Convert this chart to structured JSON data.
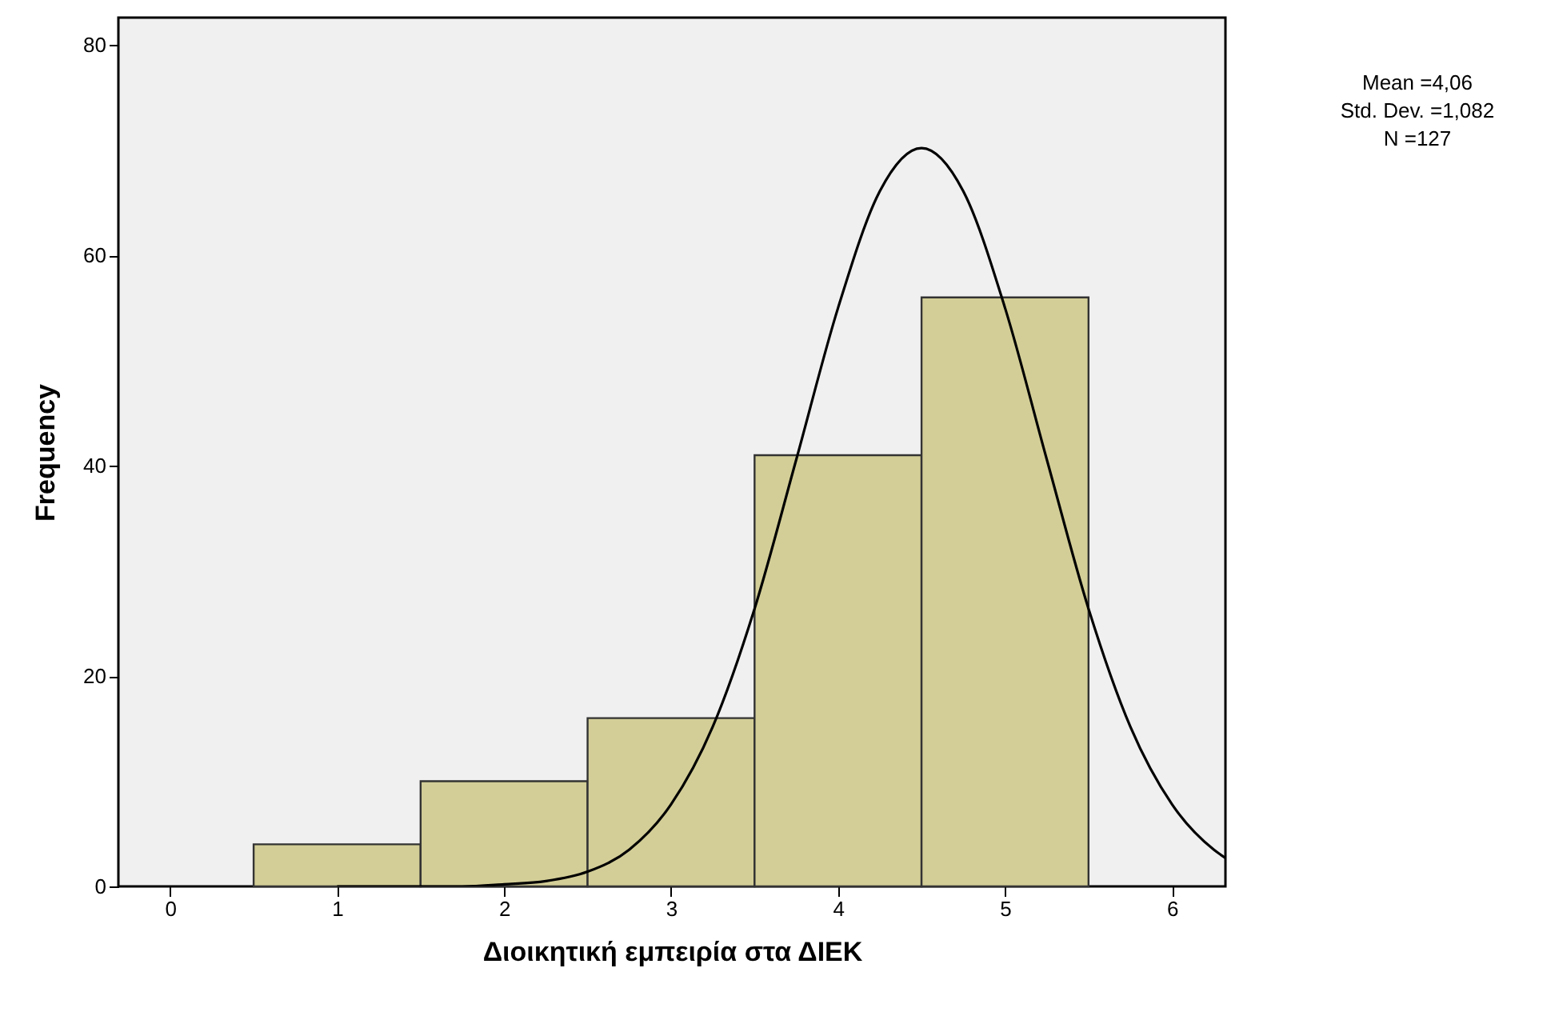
{
  "chart_data": {
    "type": "histogram",
    "xlabel": "Διοικητική εμπειρία στα ΔΙΕΚ",
    "ylabel": "Frequency",
    "bins": [
      0.5,
      1.5,
      2.5,
      3.5,
      4.5,
      5.5
    ],
    "values": [
      4,
      10,
      16,
      41,
      56
    ],
    "color": "#d3ce97",
    "series": [
      {
        "type": "line",
        "color": "#000000",
        "x": [
          1,
          1.5,
          1.75,
          2,
          2.25,
          2.5,
          2.75,
          3,
          3.25,
          3.5,
          3.75,
          4,
          4.25,
          4.5,
          4.75,
          5,
          5.25,
          5.5,
          5.75,
          6,
          6.25,
          6.32
        ],
        "values": [
          0,
          0,
          0,
          0.2,
          0.5,
          1.4,
          3.5,
          7.8,
          15.2,
          26.4,
          40.6,
          55.0,
          66.1,
          70.2,
          66.1,
          55.0,
          40.6,
          26.4,
          15.2,
          7.8,
          3.5,
          2.7
        ]
      }
    ],
    "xlim": [
      -0.31,
      6.32
    ],
    "ylim": [
      0,
      82.6
    ],
    "xticks": [
      0,
      1,
      2,
      3,
      4,
      5,
      6
    ],
    "yticks": [
      0,
      20,
      40,
      60,
      80
    ],
    "grid": false,
    "marker": "none",
    "line_style": "solid",
    "annotations": [
      "Mean =4,06",
      "Std. Dev. =1,082",
      "N =127"
    ]
  }
}
